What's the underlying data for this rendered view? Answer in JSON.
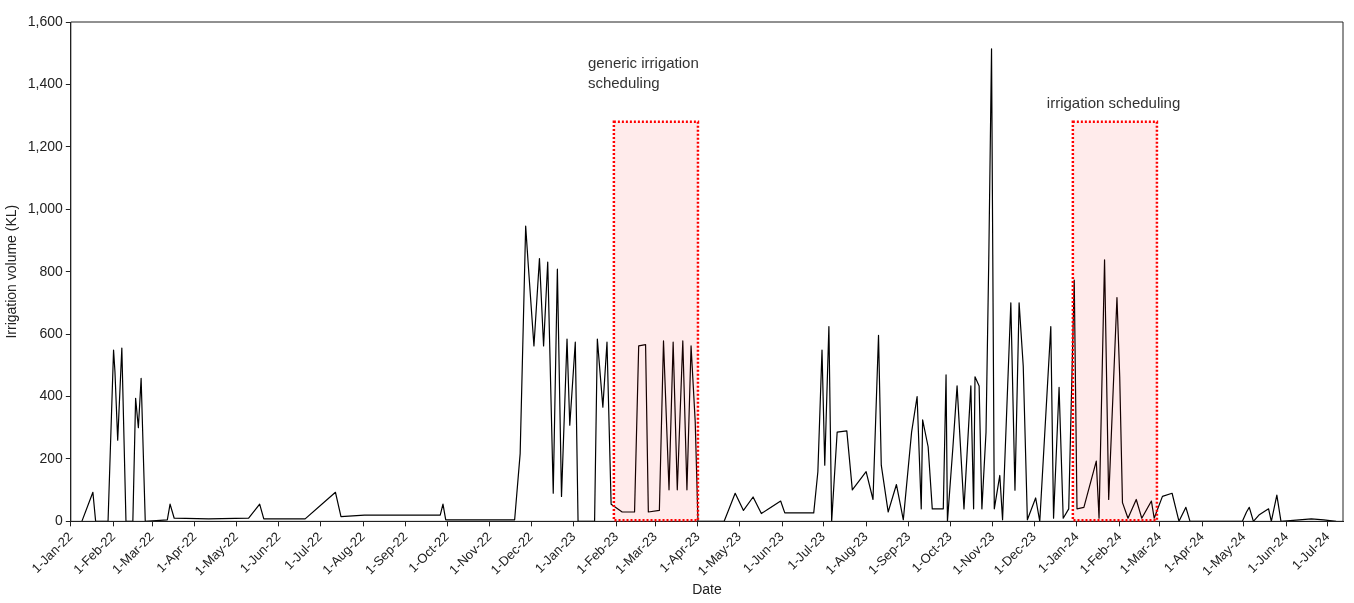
{
  "chart_data": {
    "type": "line",
    "xlabel": "Date",
    "ylabel": "Irrigation volume (KL)",
    "x": [
      "2022-01-09",
      "2022-01-17",
      "2022-01-19",
      "2022-01-28",
      "2022-02-01",
      "2022-02-02",
      "2022-02-04",
      "2022-02-07",
      "2022-02-10",
      "2022-02-15",
      "2022-02-17",
      "2022-02-19",
      "2022-02-21",
      "2022-02-24",
      "2022-03-12",
      "2022-03-14",
      "2022-03-17",
      "2022-04-11",
      "2022-05-10",
      "2022-05-18",
      "2022-05-21",
      "2022-06-20",
      "2022-07-12",
      "2022-07-16",
      "2022-08-02",
      "2022-08-29",
      "2022-09-26",
      "2022-09-28",
      "2022-09-30",
      "2022-10-28",
      "2022-11-19",
      "2022-11-23",
      "2022-11-27",
      "2022-11-29",
      "2022-12-03",
      "2022-12-07",
      "2022-12-10",
      "2022-12-13",
      "2022-12-17",
      "2022-12-20",
      "2022-12-23",
      "2022-12-27",
      "2022-12-29",
      "2023-01-02",
      "2023-01-04",
      "2023-01-16",
      "2023-01-18",
      "2023-01-22",
      "2023-01-25",
      "2023-01-28",
      "2023-02-05",
      "2023-02-14",
      "2023-02-17",
      "2023-02-22",
      "2023-02-24",
      "2023-03-04",
      "2023-03-07",
      "2023-03-11",
      "2023-03-14",
      "2023-03-17",
      "2023-03-21",
      "2023-03-24",
      "2023-03-27",
      "2023-03-30",
      "2023-04-01",
      "2023-04-20",
      "2023-04-28",
      "2023-05-04",
      "2023-05-11",
      "2023-05-17",
      "2023-05-31",
      "2023-06-03",
      "2023-06-24",
      "2023-06-27",
      "2023-06-30",
      "2023-07-02",
      "2023-07-05",
      "2023-07-07",
      "2023-07-11",
      "2023-07-18",
      "2023-07-22",
      "2023-08-01",
      "2023-08-06",
      "2023-08-10",
      "2023-08-12",
      "2023-08-17",
      "2023-08-23",
      "2023-08-28",
      "2023-09-03",
      "2023-09-07",
      "2023-09-10",
      "2023-09-11",
      "2023-09-15",
      "2023-09-18",
      "2023-09-26",
      "2023-09-28",
      "2023-09-29",
      "2023-10-03",
      "2023-10-06",
      "2023-10-11",
      "2023-10-16",
      "2023-10-18",
      "2023-10-19",
      "2023-10-22",
      "2023-10-24",
      "2023-10-27",
      "2023-10-29",
      "2023-10-31",
      "2023-11-02",
      "2023-11-06",
      "2023-11-08",
      "2023-11-14",
      "2023-11-17",
      "2023-11-20",
      "2023-11-23",
      "2023-11-26",
      "2023-12-02",
      "2023-12-05",
      "2023-12-13",
      "2023-12-15",
      "2023-12-19",
      "2023-12-22",
      "2023-12-26",
      "2023-12-30",
      "2024-01-01",
      "2024-01-06",
      "2024-01-15",
      "2024-01-17",
      "2024-01-21",
      "2024-01-24",
      "2024-01-30",
      "2024-02-01",
      "2024-02-03",
      "2024-02-07",
      "2024-02-13",
      "2024-02-17",
      "2024-02-24",
      "2024-02-26",
      "2024-03-03",
      "2024-03-10",
      "2024-03-15",
      "2024-03-20",
      "2024-03-23",
      "2024-04-30",
      "2024-05-03",
      "2024-05-05",
      "2024-05-08",
      "2024-05-12",
      "2024-05-19",
      "2024-05-21",
      "2024-05-25",
      "2024-05-28",
      "2024-06-19",
      "2024-06-28",
      "2024-07-07"
    ],
    "series": [
      {
        "color": "#000000",
        "values": [
          0,
          93,
          0,
          0,
          549,
          480,
          260,
          555,
          0,
          0,
          394,
          300,
          458,
          0,
          5,
          55,
          10,
          8,
          10,
          55,
          8,
          8,
          93,
          15,
          20,
          20,
          20,
          55,
          5,
          5,
          5,
          217,
          946,
          814,
          562,
          842,
          562,
          831,
          90,
          808,
          80,
          584,
          308,
          574,
          0,
          0,
          584,
          366,
          574,
          55,
          30,
          30,
          562,
          566,
          30,
          35,
          578,
          101,
          574,
          101,
          578,
          101,
          562,
          320,
          0,
          0,
          90,
          35,
          78,
          25,
          65,
          27,
          27,
          159,
          549,
          180,
          624,
          0,
          286,
          290,
          101,
          159,
          70,
          596,
          180,
          30,
          118,
          5,
          286,
          400,
          40,
          325,
          239,
          40,
          40,
          469,
          0,
          239,
          434,
          40,
          434,
          40,
          463,
          434,
          40,
          286,
          840,
          1514,
          40,
          147,
          5,
          700,
          100,
          700,
          498,
          5,
          75,
          0,
          624,
          10,
          429,
          10,
          40,
          773,
          40,
          45,
          193,
          10,
          838,
          70,
          717,
          463,
          60,
          10,
          70,
          10,
          65,
          10,
          80,
          90,
          0,
          45,
          0,
          0,
          30,
          45,
          0,
          20,
          40,
          0,
          84,
          0,
          8,
          5,
          0
        ]
      }
    ],
    "xlim": [
      "2022-01-01",
      "2024-07-12"
    ],
    "xticks": [
      {
        "value": "2022-01-01",
        "label": "1-Jan-22"
      },
      {
        "value": "2022-02-01",
        "label": "1-Feb-22"
      },
      {
        "value": "2022-03-01",
        "label": "1-Mar-22"
      },
      {
        "value": "2022-04-01",
        "label": "1-Apr-22"
      },
      {
        "value": "2022-05-01",
        "label": "1-May-22"
      },
      {
        "value": "2022-06-01",
        "label": "1-Jun-22"
      },
      {
        "value": "2022-07-01",
        "label": "1-Jul-22"
      },
      {
        "value": "2022-08-01",
        "label": "1-Aug-22"
      },
      {
        "value": "2022-09-01",
        "label": "1-Sep-22"
      },
      {
        "value": "2022-10-01",
        "label": "1-Oct-22"
      },
      {
        "value": "2022-11-01",
        "label": "1-Nov-22"
      },
      {
        "value": "2022-12-01",
        "label": "1-Dec-22"
      },
      {
        "value": "2023-01-01",
        "label": "1-Jan-23"
      },
      {
        "value": "2023-02-01",
        "label": "1-Feb-23"
      },
      {
        "value": "2023-03-01",
        "label": "1-Mar-23"
      },
      {
        "value": "2023-04-01",
        "label": "1-Apr-23"
      },
      {
        "value": "2023-05-01",
        "label": "1-May-23"
      },
      {
        "value": "2023-06-01",
        "label": "1-Jun-23"
      },
      {
        "value": "2023-07-01",
        "label": "1-Jul-23"
      },
      {
        "value": "2023-08-01",
        "label": "1-Aug-23"
      },
      {
        "value": "2023-09-01",
        "label": "1-Sep-23"
      },
      {
        "value": "2023-10-01",
        "label": "1-Oct-23"
      },
      {
        "value": "2023-11-01",
        "label": "1-Nov-23"
      },
      {
        "value": "2023-12-01",
        "label": "1-Dec-23"
      },
      {
        "value": "2024-01-01",
        "label": "1-Jan-24"
      },
      {
        "value": "2024-02-01",
        "label": "1-Feb-24"
      },
      {
        "value": "2024-03-01",
        "label": "1-Mar-24"
      },
      {
        "value": "2024-04-01",
        "label": "1-Apr-24"
      },
      {
        "value": "2024-05-01",
        "label": "1-May-24"
      },
      {
        "value": "2024-06-01",
        "label": "1-Jun-24"
      },
      {
        "value": "2024-07-01",
        "label": "1-Jul-24"
      }
    ],
    "ylim": [
      0,
      1600
    ],
    "yticks": [
      0,
      200,
      400,
      600,
      800,
      {
        "value": 1000,
        "label": "1,000"
      },
      {
        "value": 1200,
        "label": "1,200"
      },
      {
        "value": 1400,
        "label": "1,400"
      },
      {
        "value": 1600,
        "label": "1,600"
      }
    ],
    "bands": [
      {
        "axis": "x",
        "from": "2023-01-30",
        "to": "2023-04-01",
        "label": "generic irrigation scheduling",
        "color": "#ff0000"
      },
      {
        "axis": "x",
        "from": "2023-12-29",
        "to": "2024-02-28",
        "label": "irrigation scheduling",
        "color": "#ff0000"
      }
    ],
    "legend": false,
    "marker": "none",
    "line_style": "solid"
  }
}
